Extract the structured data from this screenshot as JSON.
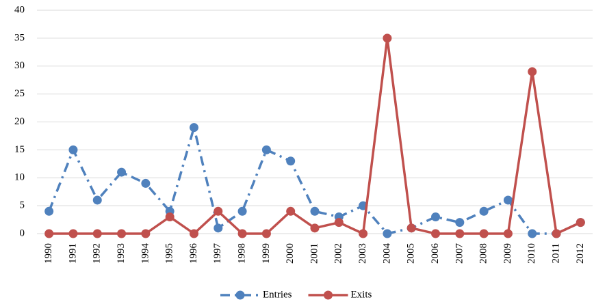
{
  "chart_data": {
    "type": "line",
    "categories": [
      "1990",
      "1991",
      "1992",
      "1993",
      "1994",
      "1995",
      "1996",
      "1997",
      "1998",
      "1999",
      "2000",
      "2001",
      "2002",
      "2003",
      "2004",
      "2005",
      "2006",
      "2007",
      "2008",
      "2009",
      "2010",
      "2011",
      "2012"
    ],
    "series": [
      {
        "name": "Entries",
        "color": "#4f81bd",
        "dash": "dashdot",
        "values": [
          4,
          15,
          6,
          11,
          9,
          4,
          19,
          1,
          4,
          15,
          13,
          4,
          3,
          5,
          0,
          1,
          3,
          2,
          4,
          6,
          0,
          0,
          2
        ]
      },
      {
        "name": "Exits",
        "color": "#c0504d",
        "dash": "solid",
        "values": [
          0,
          0,
          0,
          0,
          0,
          3,
          0,
          4,
          0,
          0,
          4,
          1,
          2,
          0,
          35,
          1,
          0,
          0,
          0,
          0,
          29,
          0,
          2
        ]
      }
    ],
    "ylim": [
      0,
      40
    ],
    "yticks": [
      0,
      5,
      10,
      15,
      20,
      25,
      30,
      35,
      40
    ],
    "grid": true,
    "legend": "bottom"
  }
}
